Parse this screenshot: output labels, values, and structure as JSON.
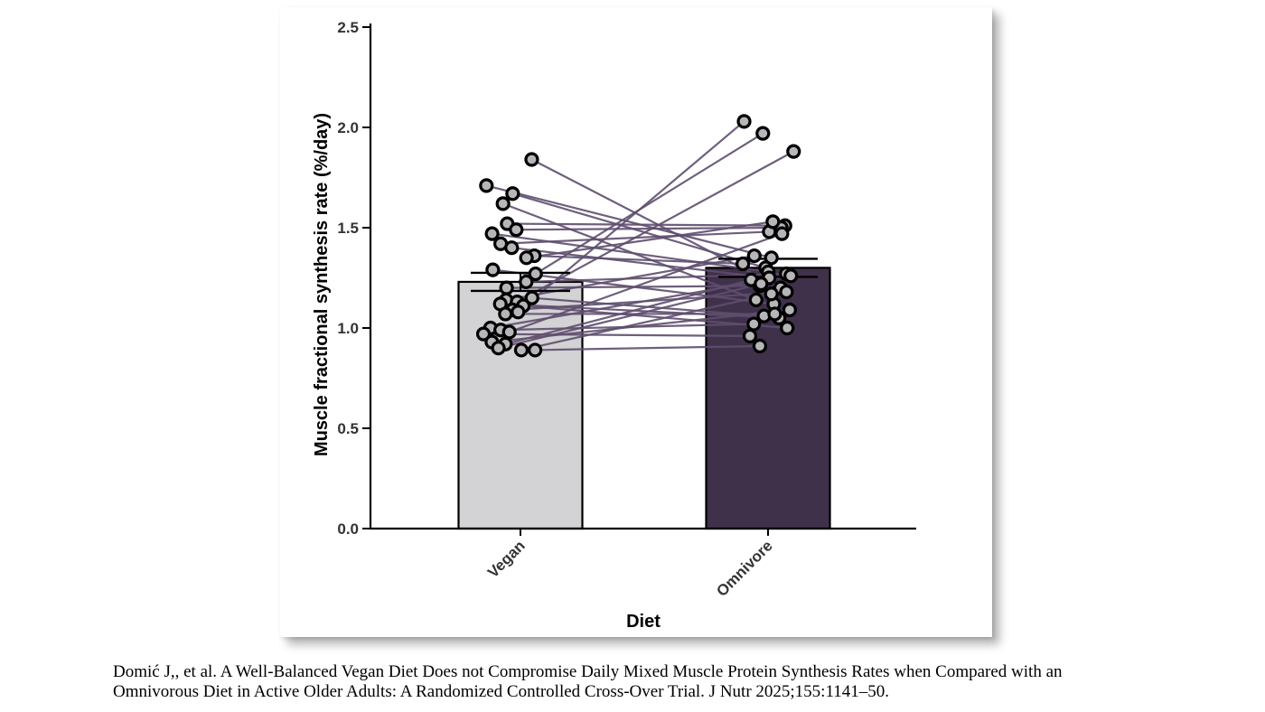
{
  "chart_data": {
    "type": "bar",
    "xlabel": "Diet",
    "ylabel": "Muscle fractional synthesis rate (%/day)",
    "ylim": [
      0,
      2.5
    ],
    "yticks": [
      "0.0",
      "0.5",
      "1.0",
      "1.5",
      "2.0",
      "2.5"
    ],
    "grid": false,
    "categories": [
      "Vegan",
      "Omnivore"
    ],
    "values": [
      1.23,
      1.3
    ],
    "error": [
      0.045,
      0.045
    ],
    "bar_colors": [
      "#d3d2d4",
      "#40314a"
    ],
    "line_color": "#5e4e6e",
    "pairs": [
      [
        1.84,
        1.2
      ],
      [
        1.71,
        1.35
      ],
      [
        1.67,
        1.3
      ],
      [
        1.62,
        1.14
      ],
      [
        1.52,
        1.51
      ],
      [
        1.49,
        1.5
      ],
      [
        1.47,
        1.28
      ],
      [
        1.42,
        1.48
      ],
      [
        1.4,
        1.25
      ],
      [
        1.36,
        1.32
      ],
      [
        1.35,
        1.53
      ],
      [
        1.29,
        1.12
      ],
      [
        1.27,
        1.97
      ],
      [
        1.23,
        1.27
      ],
      [
        1.2,
        1.21
      ],
      [
        1.15,
        1.06
      ],
      [
        1.14,
        1.36
      ],
      [
        1.13,
        1.88
      ],
      [
        1.12,
        1.05
      ],
      [
        1.11,
        1.0
      ],
      [
        1.09,
        1.18
      ],
      [
        1.08,
        2.03
      ],
      [
        1.07,
        1.07
      ],
      [
        1.0,
        1.26
      ],
      [
        0.99,
        1.02
      ],
      [
        0.98,
        1.47
      ],
      [
        0.97,
        0.96
      ],
      [
        0.93,
        1.09
      ],
      [
        0.92,
        1.24
      ],
      [
        0.89,
        0.91
      ],
      [
        0.89,
        1.17
      ],
      [
        0.9,
        1.22
      ]
    ]
  },
  "caption": {
    "line1": "Domić J,, et al. A Well-Balanced Vegan Diet Does not Compromise Daily Mixed Muscle Protein Synthesis Rates when Compared with an",
    "line2": "Omnivorous Diet in Active Older Adults: A Randomized Controlled Cross-Over Trial. J Nutr 2025;155:1141–50."
  }
}
